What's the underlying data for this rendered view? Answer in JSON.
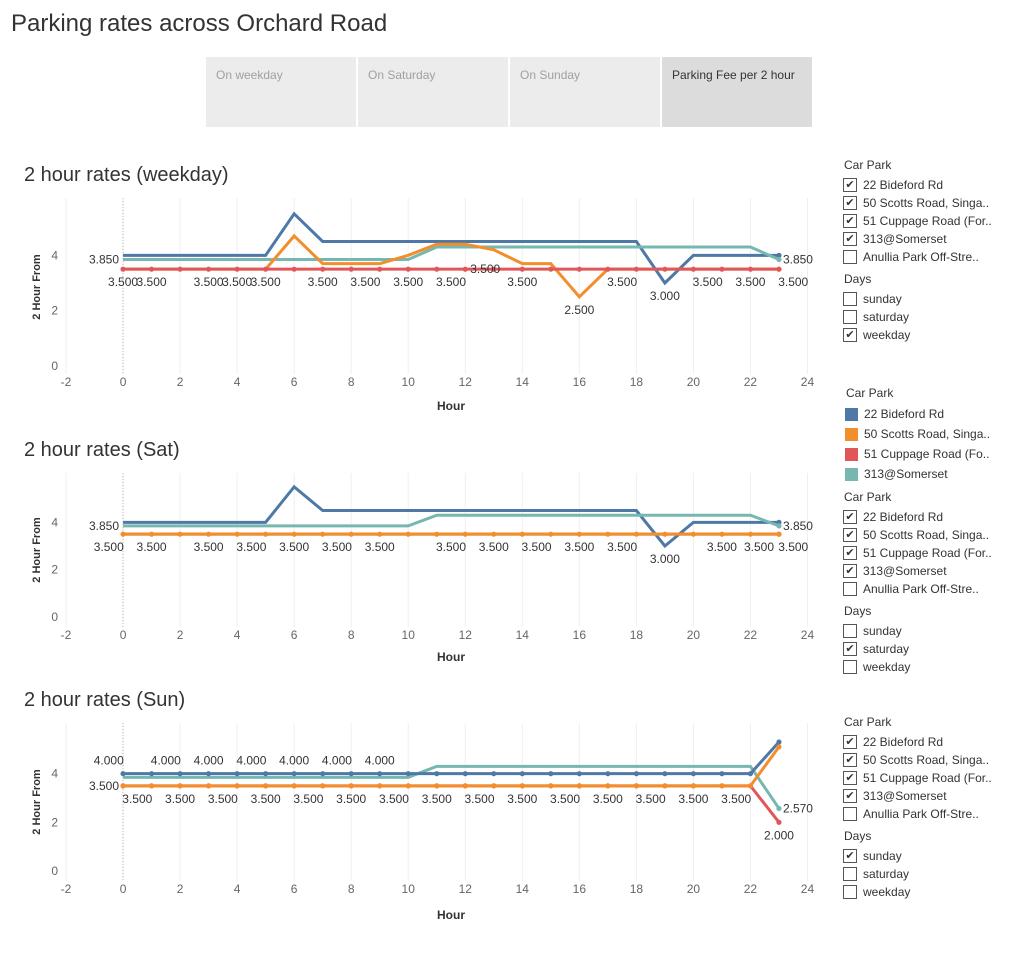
{
  "page": {
    "title": "Parking rates across Orchard Road"
  },
  "tabs": [
    {
      "label": "On weekday",
      "active": false
    },
    {
      "label": "On Saturday",
      "active": false
    },
    {
      "label": "On Sunday",
      "active": false
    },
    {
      "label": "Parking Fee per 2 hour",
      "active": true
    }
  ],
  "colors": {
    "22 Bideford Rd": "#4e79a7",
    "50 Scotts Road, Singa..": "#f28e2b",
    "51 Cuppage Road (Fo..": "#e15759",
    "313@Somerset": "#76b7b2",
    "grid": "#efefef",
    "zero_line": "#bbbbbb"
  },
  "legend": {
    "title": "Car Park",
    "items": [
      {
        "label": "22 Bideford Rd",
        "color": "#4e79a7"
      },
      {
        "label": "50 Scotts Road, Singa..",
        "color": "#f28e2b"
      },
      {
        "label": "51 Cuppage Road (Fo..",
        "color": "#e15759"
      },
      {
        "label": "313@Somerset",
        "color": "#76b7b2"
      }
    ]
  },
  "filters": [
    {
      "carpark_title": "Car Park",
      "carparks": [
        {
          "label": "22 Bideford Rd",
          "checked": true
        },
        {
          "label": "50 Scotts Road, Singa..",
          "checked": true
        },
        {
          "label": "51 Cuppage Road (For..",
          "checked": true
        },
        {
          "label": "313@Somerset",
          "checked": true
        },
        {
          "label": "Anullia Park Off-Stre..",
          "checked": false
        }
      ],
      "days_title": "Days",
      "days": [
        {
          "label": "sunday",
          "checked": false
        },
        {
          "label": "saturday",
          "checked": false
        },
        {
          "label": "weekday",
          "checked": true
        }
      ]
    },
    {
      "carpark_title": "Car Park",
      "carparks": [
        {
          "label": "22 Bideford Rd",
          "checked": true
        },
        {
          "label": "50 Scotts Road, Singa..",
          "checked": true
        },
        {
          "label": "51 Cuppage Road (For..",
          "checked": true
        },
        {
          "label": "313@Somerset",
          "checked": true
        },
        {
          "label": "Anullia Park Off-Stre..",
          "checked": false
        }
      ],
      "days_title": "Days",
      "days": [
        {
          "label": "sunday",
          "checked": false
        },
        {
          "label": "saturday",
          "checked": true
        },
        {
          "label": "weekday",
          "checked": false
        }
      ]
    },
    {
      "carpark_title": "Car Park",
      "carparks": [
        {
          "label": "22 Bideford Rd",
          "checked": true
        },
        {
          "label": "50 Scotts Road, Singa..",
          "checked": true
        },
        {
          "label": "51 Cuppage Road (For..",
          "checked": true
        },
        {
          "label": "313@Somerset",
          "checked": true
        },
        {
          "label": "Anullia Park Off-Stre..",
          "checked": false
        }
      ],
      "days_title": "Days",
      "days": [
        {
          "label": "sunday",
          "checked": true
        },
        {
          "label": "saturday",
          "checked": false
        },
        {
          "label": "weekday",
          "checked": false
        }
      ]
    }
  ],
  "chart_data": [
    {
      "type": "line",
      "title": "2 hour rates (weekday)",
      "xlabel": "Hour",
      "ylabel": "2 Hour From",
      "xlim": [
        -2,
        25
      ],
      "ylim": [
        0,
        6
      ],
      "xticks": [
        -2,
        0,
        2,
        4,
        6,
        8,
        10,
        12,
        14,
        16,
        18,
        20,
        22,
        24
      ],
      "yticks": [
        0,
        2,
        4
      ],
      "series": [
        {
          "name": "22 Bideford Rd",
          "x": [
            0,
            5,
            6,
            7,
            18,
            19,
            20,
            23
          ],
          "y": [
            4,
            4,
            5.5,
            4.5,
            4.5,
            3,
            4,
            4
          ],
          "points": false
        },
        {
          "name": "313@Somerset",
          "x": [
            0,
            10,
            11,
            22,
            23
          ],
          "y": [
            3.85,
            3.85,
            4.3,
            4.3,
            3.85
          ],
          "points": false
        },
        {
          "name": "50 Scotts Road, Singa..",
          "x": [
            0,
            5,
            6,
            7,
            9,
            10,
            11,
            12,
            13,
            14,
            15,
            16,
            17,
            23
          ],
          "y": [
            3.5,
            3.5,
            4.7,
            3.7,
            3.7,
            4,
            4.4,
            4.4,
            4.2,
            3.7,
            3.7,
            2.5,
            3.5,
            3.5
          ],
          "points": false
        },
        {
          "name": "51 Cuppage Road (Fo..",
          "x": [
            0,
            1,
            2,
            3,
            4,
            5,
            6,
            7,
            8,
            9,
            10,
            11,
            12,
            13,
            14,
            15,
            16,
            17,
            18,
            19,
            20,
            21,
            22,
            23
          ],
          "y": [
            3.5,
            3.5,
            3.5,
            3.5,
            3.5,
            3.5,
            3.5,
            3.5,
            3.5,
            3.5,
            3.5,
            3.5,
            3.5,
            3.5,
            3.5,
            3.5,
            3.5,
            3.5,
            3.5,
            3.5,
            3.5,
            3.5,
            3.5,
            3.5
          ],
          "points": true
        }
      ],
      "annotations": [
        {
          "x": 0,
          "y": 3.85,
          "text": "3.850",
          "pos": "left"
        },
        {
          "x": 23,
          "y": 3.85,
          "text": "3.850",
          "pos": "right"
        },
        {
          "x": 0,
          "y": 3.5,
          "text": "3.500",
          "pos": "below"
        },
        {
          "x": 1,
          "y": 3.5,
          "text": "3.500",
          "pos": "below"
        },
        {
          "x": 3,
          "y": 3.5,
          "text": "3.500",
          "pos": "below"
        },
        {
          "x": 4,
          "y": 3.5,
          "text": "3.500",
          "pos": "below"
        },
        {
          "x": 5,
          "y": 3.5,
          "text": "3.500",
          "pos": "below"
        },
        {
          "x": 7,
          "y": 3.5,
          "text": "3.500",
          "pos": "below"
        },
        {
          "x": 8.5,
          "y": 3.5,
          "text": "3.500",
          "pos": "below"
        },
        {
          "x": 10,
          "y": 3.5,
          "text": "3.500",
          "pos": "below"
        },
        {
          "x": 11.5,
          "y": 3.5,
          "text": "3.500",
          "pos": "below"
        },
        {
          "x": 12.7,
          "y": 3.5,
          "text": "3.500",
          "pos": "center"
        },
        {
          "x": 14,
          "y": 3.5,
          "text": "3.500",
          "pos": "below"
        },
        {
          "x": 16,
          "y": 2.5,
          "text": "2.500",
          "pos": "below"
        },
        {
          "x": 17.5,
          "y": 3.5,
          "text": "3.500",
          "pos": "below"
        },
        {
          "x": 19,
          "y": 3,
          "text": "3.000",
          "pos": "below"
        },
        {
          "x": 20.5,
          "y": 3.5,
          "text": "3.500",
          "pos": "below"
        },
        {
          "x": 22,
          "y": 3.5,
          "text": "3.500",
          "pos": "below"
        },
        {
          "x": 23.5,
          "y": 3.5,
          "text": "3.500",
          "pos": "below"
        }
      ]
    },
    {
      "type": "line",
      "title": "2 hour rates (Sat)",
      "xlabel": "Hour",
      "ylabel": "2 Hour From",
      "xlim": [
        -2,
        25
      ],
      "ylim": [
        0,
        6
      ],
      "xticks": [
        -2,
        0,
        2,
        4,
        6,
        8,
        10,
        12,
        14,
        16,
        18,
        20,
        22,
        24
      ],
      "yticks": [
        0,
        2,
        4
      ],
      "series": [
        {
          "name": "22 Bideford Rd",
          "x": [
            0,
            5,
            6,
            7,
            18,
            19,
            20,
            23
          ],
          "y": [
            4,
            4,
            5.5,
            4.5,
            4.5,
            3,
            4,
            4
          ],
          "points": false
        },
        {
          "name": "313@Somerset",
          "x": [
            0,
            10,
            11,
            22,
            23
          ],
          "y": [
            3.85,
            3.85,
            4.3,
            4.3,
            3.85
          ],
          "points": false
        },
        {
          "name": "51 Cuppage Road (Fo..",
          "x": [
            0,
            23
          ],
          "y": [
            3.5,
            3.5
          ],
          "points": false
        },
        {
          "name": "50 Scotts Road, Singa..",
          "x": [
            0,
            1,
            2,
            3,
            4,
            5,
            6,
            7,
            8,
            9,
            10,
            11,
            12,
            13,
            14,
            15,
            16,
            17,
            18,
            19,
            20,
            21,
            22,
            23
          ],
          "y": [
            3.5,
            3.5,
            3.5,
            3.5,
            3.5,
            3.5,
            3.5,
            3.5,
            3.5,
            3.5,
            3.5,
            3.5,
            3.5,
            3.5,
            3.5,
            3.5,
            3.5,
            3.5,
            3.5,
            3.5,
            3.5,
            3.5,
            3.5,
            3.5
          ],
          "points": true
        }
      ],
      "annotations": [
        {
          "x": 0,
          "y": 3.85,
          "text": "3.850",
          "pos": "left"
        },
        {
          "x": 23,
          "y": 3.85,
          "text": "3.850",
          "pos": "right"
        },
        {
          "x": -0.5,
          "y": 3.5,
          "text": "3.500",
          "pos": "below"
        },
        {
          "x": 1,
          "y": 3.5,
          "text": "3.500",
          "pos": "below"
        },
        {
          "x": 3,
          "y": 3.5,
          "text": "3.500",
          "pos": "below"
        },
        {
          "x": 4.5,
          "y": 3.5,
          "text": "3.500",
          "pos": "below"
        },
        {
          "x": 6,
          "y": 3.5,
          "text": "3.500",
          "pos": "below"
        },
        {
          "x": 7.5,
          "y": 3.5,
          "text": "3.500",
          "pos": "below"
        },
        {
          "x": 9,
          "y": 3.5,
          "text": "3.500",
          "pos": "below"
        },
        {
          "x": 11.5,
          "y": 3.5,
          "text": "3.500",
          "pos": "below"
        },
        {
          "x": 13,
          "y": 3.5,
          "text": "3.500",
          "pos": "below"
        },
        {
          "x": 14.5,
          "y": 3.5,
          "text": "3.500",
          "pos": "below"
        },
        {
          "x": 16,
          "y": 3.5,
          "text": "3.500",
          "pos": "below"
        },
        {
          "x": 17.5,
          "y": 3.5,
          "text": "3.500",
          "pos": "below"
        },
        {
          "x": 19,
          "y": 3,
          "text": "3.000",
          "pos": "below"
        },
        {
          "x": 21,
          "y": 3.5,
          "text": "3.500",
          "pos": "below"
        },
        {
          "x": 22.3,
          "y": 3.5,
          "text": "3.500",
          "pos": "below"
        },
        {
          "x": 23.5,
          "y": 3.5,
          "text": "3.500",
          "pos": "below"
        }
      ]
    },
    {
      "type": "line",
      "title": "2 hour rates (Sun)",
      "xlabel": "Hour",
      "ylabel": "2 Hour From",
      "xlim": [
        -2,
        25
      ],
      "ylim": [
        0,
        6
      ],
      "xticks": [
        -2,
        0,
        2,
        4,
        6,
        8,
        10,
        12,
        14,
        16,
        18,
        20,
        22,
        24
      ],
      "yticks": [
        0,
        2,
        4
      ],
      "series": [
        {
          "name": "313@Somerset",
          "x": [
            0,
            10,
            11,
            22,
            23
          ],
          "y": [
            3.85,
            3.85,
            4.3,
            4.3,
            2.57
          ],
          "points": false
        },
        {
          "name": "22 Bideford Rd",
          "x": [
            0,
            1,
            2,
            3,
            4,
            5,
            6,
            7,
            8,
            9,
            10,
            11,
            12,
            13,
            14,
            15,
            16,
            17,
            18,
            19,
            20,
            21,
            22,
            23
          ],
          "y": [
            4,
            4,
            4,
            4,
            4,
            4,
            4,
            4,
            4,
            4,
            4,
            4,
            4,
            4,
            4,
            4,
            4,
            4,
            4,
            4,
            4,
            4,
            4,
            5.3
          ],
          "points": true
        },
        {
          "name": "51 Cuppage Road (Fo..",
          "x": [
            0,
            1,
            2,
            3,
            4,
            5,
            6,
            7,
            8,
            9,
            10,
            11,
            12,
            13,
            14,
            15,
            16,
            17,
            18,
            19,
            20,
            21,
            22,
            23
          ],
          "y": [
            3.5,
            3.5,
            3.5,
            3.5,
            3.5,
            3.5,
            3.5,
            3.5,
            3.5,
            3.5,
            3.5,
            3.5,
            3.5,
            3.5,
            3.5,
            3.5,
            3.5,
            3.5,
            3.5,
            3.5,
            3.5,
            3.5,
            3.5,
            2
          ],
          "points": true
        },
        {
          "name": "50 Scotts Road, Singa..",
          "x": [
            0,
            1,
            2,
            3,
            4,
            5,
            6,
            7,
            8,
            9,
            10,
            11,
            12,
            13,
            14,
            15,
            16,
            17,
            18,
            19,
            20,
            21,
            22,
            23
          ],
          "y": [
            3.5,
            3.5,
            3.5,
            3.5,
            3.5,
            3.5,
            3.5,
            3.5,
            3.5,
            3.5,
            3.5,
            3.5,
            3.5,
            3.5,
            3.5,
            3.5,
            3.5,
            3.5,
            3.5,
            3.5,
            3.5,
            3.5,
            3.5,
            5.1
          ],
          "points": true
        }
      ],
      "annotations": [
        {
          "x": -0.5,
          "y": 4,
          "text": "4.000",
          "pos": "above"
        },
        {
          "x": 1.5,
          "y": 4,
          "text": "4.000",
          "pos": "above"
        },
        {
          "x": 3,
          "y": 4,
          "text": "4.000",
          "pos": "above"
        },
        {
          "x": 4.5,
          "y": 4,
          "text": "4.000",
          "pos": "above"
        },
        {
          "x": 6,
          "y": 4,
          "text": "4.000",
          "pos": "above"
        },
        {
          "x": 7.5,
          "y": 4,
          "text": "4.000",
          "pos": "above"
        },
        {
          "x": 9,
          "y": 4,
          "text": "4.000",
          "pos": "above"
        },
        {
          "x": 0,
          "y": 3.5,
          "text": "3.500",
          "pos": "left"
        },
        {
          "x": 0.5,
          "y": 3.5,
          "text": "3.500",
          "pos": "below"
        },
        {
          "x": 2,
          "y": 3.5,
          "text": "3.500",
          "pos": "below"
        },
        {
          "x": 3.5,
          "y": 3.5,
          "text": "3.500",
          "pos": "below"
        },
        {
          "x": 5,
          "y": 3.5,
          "text": "3.500",
          "pos": "below"
        },
        {
          "x": 6.5,
          "y": 3.5,
          "text": "3.500",
          "pos": "below"
        },
        {
          "x": 8,
          "y": 3.5,
          "text": "3.500",
          "pos": "below"
        },
        {
          "x": 9.5,
          "y": 3.5,
          "text": "3.500",
          "pos": "below"
        },
        {
          "x": 11,
          "y": 3.5,
          "text": "3.500",
          "pos": "below"
        },
        {
          "x": 12.5,
          "y": 3.5,
          "text": "3.500",
          "pos": "below"
        },
        {
          "x": 14,
          "y": 3.5,
          "text": "3.500",
          "pos": "below"
        },
        {
          "x": 15.5,
          "y": 3.5,
          "text": "3.500",
          "pos": "below"
        },
        {
          "x": 17,
          "y": 3.5,
          "text": "3.500",
          "pos": "below"
        },
        {
          "x": 18.5,
          "y": 3.5,
          "text": "3.500",
          "pos": "below"
        },
        {
          "x": 20,
          "y": 3.5,
          "text": "3.500",
          "pos": "below"
        },
        {
          "x": 21.5,
          "y": 3.5,
          "text": "3.500",
          "pos": "below"
        },
        {
          "x": 23,
          "y": 2.57,
          "text": "2.570",
          "pos": "right"
        },
        {
          "x": 23,
          "y": 2,
          "text": "2.000",
          "pos": "below"
        }
      ]
    }
  ]
}
